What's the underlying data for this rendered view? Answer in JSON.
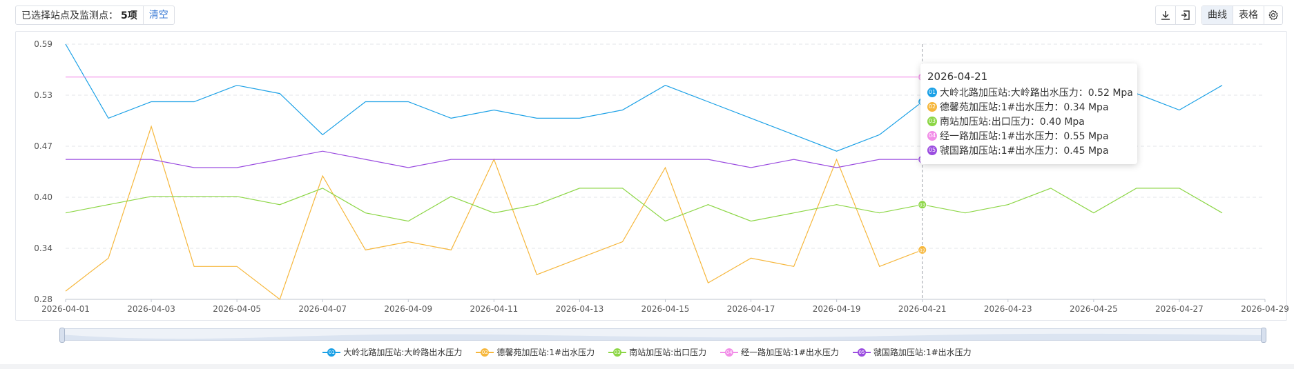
{
  "selection": {
    "label": "已选择站点及监测点：",
    "count": "5项",
    "clear_label": "清空"
  },
  "toolbar": {
    "download_icon": "download-icon",
    "export_icon": "export-icon",
    "curve_label": "曲线",
    "table_label": "表格",
    "settings_icon": "gear-icon"
  },
  "tooltip": {
    "date": "2026-04-21",
    "rows": [
      {
        "badge": "01",
        "text": "大岭北路加压站:大岭路出水压力：0.52 Mpa"
      },
      {
        "badge": "02",
        "text": "德馨苑加压站:1#出水压力：0.34 Mpa"
      },
      {
        "badge": "03",
        "text": "南站加压站:出口压力：0.40 Mpa"
      },
      {
        "badge": "04",
        "text": "经一路加压站:1#出水压力：0.55 Mpa"
      },
      {
        "badge": "05",
        "text": "虢国路加压站:1#出水压力：0.45 Mpa"
      }
    ]
  },
  "chart_data": {
    "type": "line",
    "x_ticks": [
      "2026-04-01",
      "2026-04-03",
      "2026-04-05",
      "2026-04-07",
      "2026-04-09",
      "2026-04-11",
      "2026-04-13",
      "2026-04-15",
      "2026-04-17",
      "2026-04-19",
      "2026-04-21",
      "2026-04-23",
      "2026-04-25",
      "2026-04-27",
      "2026-04-29"
    ],
    "x_start": "2026-04-01",
    "x_end": "2026-04-29",
    "y_ticks": [
      "0.59",
      "0.53",
      "0.47",
      "0.40",
      "0.34",
      "0.28"
    ],
    "ylim": [
      0.28,
      0.59
    ],
    "grid": true,
    "legend_position": "bottom",
    "cursor_date": "2026-04-21",
    "series": [
      {
        "name": "大岭北路加压站:大岭路出水压力",
        "badge": "01",
        "color": "#1aa0e6",
        "values": [
          0.59,
          0.5,
          0.52,
          0.52,
          0.54,
          0.53,
          0.48,
          0.52,
          0.52,
          0.5,
          0.51,
          0.5,
          0.5,
          0.51,
          0.54,
          0.52,
          0.5,
          0.48,
          0.46,
          0.48,
          0.52,
          0.5,
          0.5,
          0.51,
          0.52,
          0.53,
          0.51,
          0.54
        ]
      },
      {
        "name": "德馨苑加压站:1#出水压力",
        "badge": "02",
        "color": "#f6b73c",
        "values": [
          0.29,
          0.33,
          0.49,
          0.32,
          0.32,
          0.28,
          0.43,
          0.34,
          0.35,
          0.34,
          0.45,
          0.31,
          0.33,
          0.35,
          0.44,
          0.3,
          0.33,
          0.32,
          0.45,
          0.32,
          0.34
        ]
      },
      {
        "name": "南站加压站:出口压力",
        "badge": "03",
        "color": "#8cd645",
        "values": [
          0.385,
          0.395,
          0.405,
          0.405,
          0.405,
          0.395,
          0.415,
          0.385,
          0.375,
          0.405,
          0.385,
          0.395,
          0.415,
          0.415,
          0.375,
          0.395,
          0.375,
          0.385,
          0.395,
          0.385,
          0.395,
          0.385,
          0.395,
          0.415,
          0.385,
          0.415,
          0.415,
          0.385
        ]
      },
      {
        "name": "经一路加压站:1#出水压力",
        "badge": "04",
        "color": "#f28ee8",
        "values": [
          0.55,
          0.55,
          0.55,
          0.55,
          0.55,
          0.55,
          0.55,
          0.55,
          0.55,
          0.55,
          0.55,
          0.55,
          0.55,
          0.55,
          0.55,
          0.55,
          0.55,
          0.55,
          0.55,
          0.55,
          0.55
        ]
      },
      {
        "name": "虢国路加压站:1#出水压力",
        "badge": "05",
        "color": "#9b4de0",
        "values": [
          0.45,
          0.45,
          0.45,
          0.44,
          0.44,
          0.45,
          0.46,
          0.45,
          0.44,
          0.45,
          0.45,
          0.45,
          0.45,
          0.45,
          0.45,
          0.45,
          0.44,
          0.45,
          0.44,
          0.45,
          0.45
        ]
      }
    ]
  }
}
